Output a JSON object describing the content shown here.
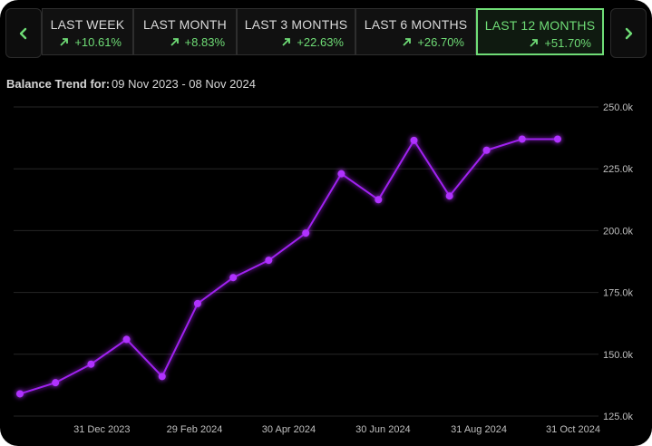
{
  "periods": {
    "tabs": [
      {
        "label": "LAST WEEK",
        "change": "+10.61%",
        "active": false
      },
      {
        "label": "LAST MONTH",
        "change": "+8.83%",
        "active": false
      },
      {
        "label": "LAST 3 MONTHS",
        "change": "+22.63%",
        "active": false
      },
      {
        "label": "LAST 6 MONTHS",
        "change": "+26.70%",
        "active": false
      },
      {
        "label": "LAST 12 MONTHS",
        "change": "+51.70%",
        "active": true
      }
    ],
    "prev_icon": "chevron-left-icon",
    "next_icon": "chevron-right-icon"
  },
  "colors": {
    "accent_green": "#6fdc76",
    "line": "#a020f0",
    "background": "#000000"
  },
  "balance_trend": {
    "label": "Balance Trend for:",
    "range": "09 Nov 2023 - 08 Nov 2024"
  },
  "chart_data": {
    "type": "line",
    "title": "",
    "xlabel": "",
    "ylabel": "",
    "x": [
      "2023-11-08",
      "2023-12-01",
      "2023-12-24",
      "2024-01-16",
      "2024-02-08",
      "2024-03-02",
      "2024-03-25",
      "2024-04-17",
      "2024-05-11",
      "2024-06-03",
      "2024-06-27",
      "2024-07-20",
      "2024-08-12",
      "2024-09-05",
      "2024-09-28",
      "2024-10-21"
    ],
    "series": [
      {
        "values": [
          134000,
          138500,
          146000,
          156000,
          141000,
          170500,
          181000,
          188000,
          199000,
          223000,
          212500,
          236500,
          214000,
          232500,
          237000,
          237000
        ]
      }
    ],
    "x_ticks": [
      "31 Dec 2023",
      "29 Feb 2024",
      "30 Apr 2024",
      "30 Jun 2024",
      "31 Aug 2024",
      "31 Oct 2024"
    ],
    "y_ticks": [
      "250.0k",
      "225.0k",
      "200.0k",
      "175.0k",
      "150.0k",
      "125.0k"
    ],
    "ylim": [
      125000,
      250000
    ],
    "grid": true
  }
}
